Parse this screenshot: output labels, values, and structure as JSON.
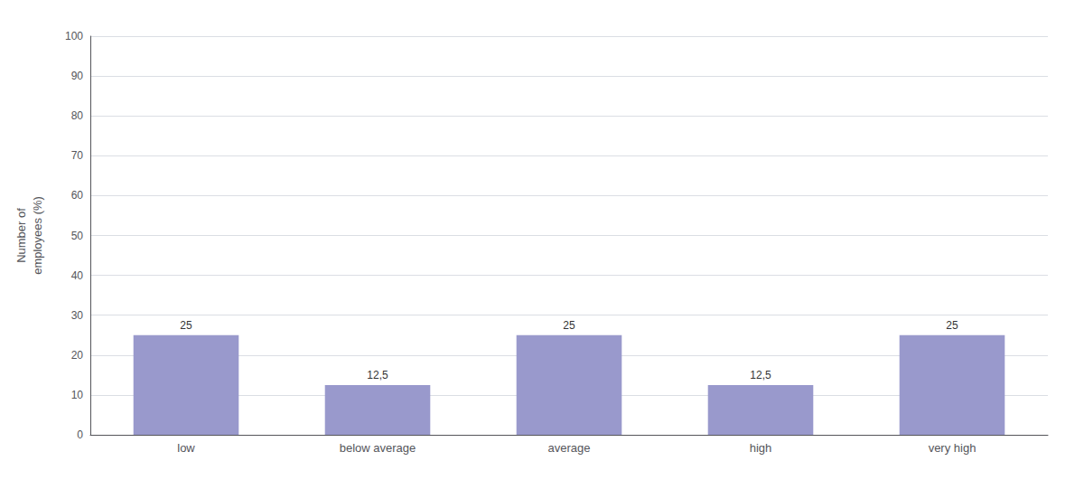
{
  "chart_data": {
    "type": "bar",
    "categories": [
      "low",
      "below average",
      "average",
      "high",
      "very high"
    ],
    "values": [
      25,
      12.5,
      25,
      12.5,
      25
    ],
    "value_labels": [
      "25",
      "12,5",
      "25",
      "12,5",
      "25"
    ],
    "data_labels": true,
    "color": "#9999cc",
    "ylabel": "Number of\nemployees (%)",
    "ylim": [
      0,
      100
    ],
    "yticks": [
      0,
      10,
      20,
      30,
      40,
      50,
      60,
      70,
      80,
      90,
      100
    ],
    "grid": true
  }
}
